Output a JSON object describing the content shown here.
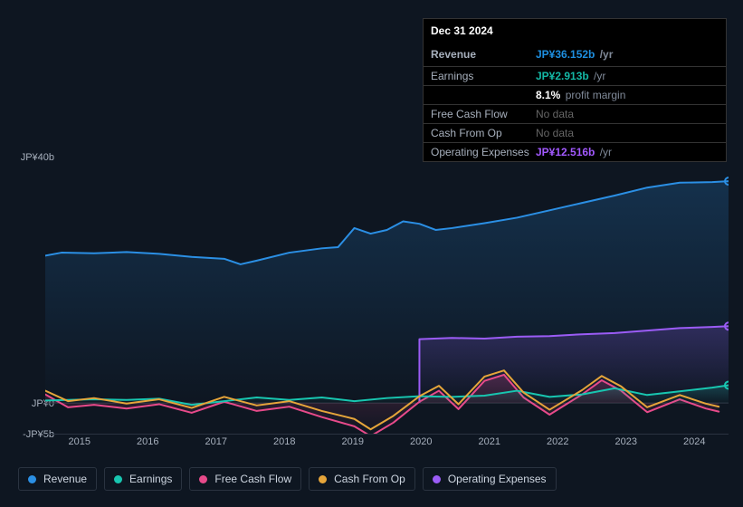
{
  "tooltip": {
    "date": "Dec 31 2024",
    "rows": [
      {
        "label": "Revenue",
        "value": "JP¥36.152b",
        "unit": "/yr",
        "cls": "revenue"
      },
      {
        "label": "Earnings",
        "value": "JP¥2.913b",
        "unit": "/yr",
        "cls": "earnings"
      },
      {
        "label": "",
        "pm_value": "8.1%",
        "pm_label": "profit margin"
      },
      {
        "label": "Free Cash Flow",
        "nodata": "No data"
      },
      {
        "label": "Cash From Op",
        "nodata": "No data"
      },
      {
        "label": "Operating Expenses",
        "value": "JP¥12.516b",
        "unit": "/yr",
        "cls": "opex"
      }
    ]
  },
  "chart": {
    "background": "#0e1621",
    "y_axis": {
      "ticks": [
        {
          "label": "JP¥40b",
          "value": 40
        },
        {
          "label": "JP¥0",
          "value": 0
        },
        {
          "label": "-JP¥5b",
          "value": -5
        }
      ],
      "min": -5,
      "max": 40
    },
    "x_axis": {
      "ticks": [
        "2015",
        "2016",
        "2017",
        "2018",
        "2019",
        "2020",
        "2021",
        "2022",
        "2023",
        "2024"
      ],
      "min": 2014.25,
      "max": 2024.75
    },
    "area_gradient_top": 0.22,
    "series": {
      "revenue": {
        "label": "Revenue",
        "color": "#2b8fe4",
        "fill": true,
        "width": 2,
        "points": [
          [
            2014.25,
            24
          ],
          [
            2014.5,
            24.5
          ],
          [
            2015,
            24.4
          ],
          [
            2015.5,
            24.6
          ],
          [
            2016,
            24.3
          ],
          [
            2016.5,
            23.8
          ],
          [
            2017,
            23.5
          ],
          [
            2017.25,
            22.6
          ],
          [
            2017.5,
            23.2
          ],
          [
            2018,
            24.5
          ],
          [
            2018.5,
            25.2
          ],
          [
            2018.75,
            25.4
          ],
          [
            2019,
            28.5
          ],
          [
            2019.25,
            27.6
          ],
          [
            2019.5,
            28.2
          ],
          [
            2019.75,
            29.6
          ],
          [
            2020,
            29.2
          ],
          [
            2020.25,
            28.2
          ],
          [
            2020.5,
            28.5
          ],
          [
            2021,
            29.3
          ],
          [
            2021.5,
            30.2
          ],
          [
            2022,
            31.4
          ],
          [
            2022.5,
            32.6
          ],
          [
            2023,
            33.8
          ],
          [
            2023.5,
            35.1
          ],
          [
            2024,
            35.9
          ],
          [
            2024.5,
            36.0
          ],
          [
            2024.75,
            36.15
          ]
        ],
        "end_marker": true
      },
      "earnings": {
        "label": "Earnings",
        "color": "#18c6b0",
        "fill": true,
        "width": 2,
        "points": [
          [
            2014.25,
            0.4
          ],
          [
            2015,
            0.6
          ],
          [
            2015.5,
            0.5
          ],
          [
            2016,
            0.7
          ],
          [
            2016.5,
            -0.3
          ],
          [
            2017,
            0.3
          ],
          [
            2017.5,
            0.9
          ],
          [
            2018,
            0.5
          ],
          [
            2018.5,
            0.9
          ],
          [
            2019,
            0.3
          ],
          [
            2019.5,
            0.8
          ],
          [
            2020,
            1.1
          ],
          [
            2020.5,
            1.0
          ],
          [
            2021,
            1.2
          ],
          [
            2021.5,
            2.0
          ],
          [
            2022,
            1.0
          ],
          [
            2022.5,
            1.4
          ],
          [
            2023,
            2.4
          ],
          [
            2023.5,
            1.3
          ],
          [
            2024,
            1.9
          ],
          [
            2024.5,
            2.5
          ],
          [
            2024.75,
            2.9
          ]
        ],
        "end_marker": true
      },
      "fcf": {
        "label": "Free Cash Flow",
        "color": "#e74a8a",
        "fill": true,
        "width": 2,
        "points": [
          [
            2014.25,
            1.4
          ],
          [
            2014.6,
            -0.7
          ],
          [
            2015,
            -0.3
          ],
          [
            2015.5,
            -0.9
          ],
          [
            2016,
            -0.2
          ],
          [
            2016.5,
            -1.6
          ],
          [
            2017,
            0.2
          ],
          [
            2017.5,
            -1.3
          ],
          [
            2018,
            -0.6
          ],
          [
            2018.5,
            -2.3
          ],
          [
            2019,
            -3.8
          ],
          [
            2019.25,
            -5.4
          ],
          [
            2019.6,
            -3.2
          ],
          [
            2020,
            0.2
          ],
          [
            2020.3,
            2.0
          ],
          [
            2020.6,
            -1.0
          ],
          [
            2021,
            3.6
          ],
          [
            2021.3,
            4.6
          ],
          [
            2021.6,
            0.9
          ],
          [
            2022,
            -1.9
          ],
          [
            2022.5,
            1.4
          ],
          [
            2022.8,
            3.7
          ],
          [
            2023.1,
            2.0
          ],
          [
            2023.5,
            -1.5
          ],
          [
            2024,
            0.6
          ],
          [
            2024.4,
            -0.9
          ],
          [
            2024.6,
            -1.4
          ]
        ]
      },
      "cashop": {
        "label": "Cash From Op",
        "color": "#e6a53a",
        "fill": false,
        "width": 2,
        "points": [
          [
            2014.25,
            2.0
          ],
          [
            2014.6,
            0.3
          ],
          [
            2015,
            0.8
          ],
          [
            2015.5,
            -0.1
          ],
          [
            2016,
            0.6
          ],
          [
            2016.5,
            -0.8
          ],
          [
            2017,
            1.0
          ],
          [
            2017.5,
            -0.4
          ],
          [
            2018,
            0.3
          ],
          [
            2018.5,
            -1.3
          ],
          [
            2019,
            -2.6
          ],
          [
            2019.25,
            -4.3
          ],
          [
            2019.6,
            -2.1
          ],
          [
            2020,
            1.1
          ],
          [
            2020.3,
            2.8
          ],
          [
            2020.6,
            -0.2
          ],
          [
            2021,
            4.3
          ],
          [
            2021.3,
            5.3
          ],
          [
            2021.6,
            1.7
          ],
          [
            2022,
            -1.1
          ],
          [
            2022.5,
            2.1
          ],
          [
            2022.8,
            4.4
          ],
          [
            2023.1,
            2.7
          ],
          [
            2023.5,
            -0.7
          ],
          [
            2024,
            1.3
          ],
          [
            2024.4,
            -0.1
          ],
          [
            2024.6,
            -0.6
          ]
        ]
      },
      "opex": {
        "label": "Operating Expenses",
        "color": "#9b5cf6",
        "fill": true,
        "width": 2,
        "start_from": 2020,
        "points": [
          [
            2020,
            10.4
          ],
          [
            2020.5,
            10.6
          ],
          [
            2021,
            10.5
          ],
          [
            2021.5,
            10.8
          ],
          [
            2022,
            10.9
          ],
          [
            2022.5,
            11.2
          ],
          [
            2023,
            11.4
          ],
          [
            2023.5,
            11.8
          ],
          [
            2024,
            12.2
          ],
          [
            2024.5,
            12.4
          ],
          [
            2024.75,
            12.52
          ]
        ],
        "end_marker": true
      }
    },
    "zero_line_color": "#303a48"
  },
  "legend_order": [
    "revenue",
    "earnings",
    "fcf",
    "cashop",
    "opex"
  ]
}
